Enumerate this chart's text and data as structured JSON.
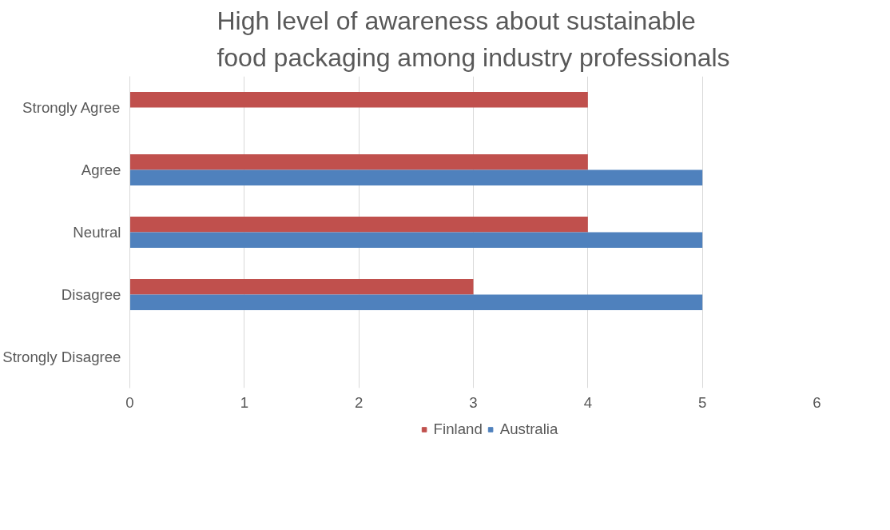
{
  "chart_data": {
    "type": "bar",
    "orientation": "horizontal",
    "title": "High level of awareness about sustainable food packaging among industry professionals",
    "categories": [
      "Strongly Agree",
      "Agree",
      "Neutral",
      "Disagree",
      "Strongly Disagree"
    ],
    "series": [
      {
        "name": "Finland",
        "color": "#c0504d",
        "values": [
          4,
          4,
          4,
          3,
          0
        ]
      },
      {
        "name": "Australia",
        "color": "#4f81bd",
        "values": [
          0,
          5,
          5,
          5,
          0
        ]
      }
    ],
    "xlim": [
      0,
      6
    ],
    "xticks": [
      0,
      1,
      2,
      3,
      4,
      5,
      6
    ],
    "grid": "x",
    "legend": "bottom"
  }
}
